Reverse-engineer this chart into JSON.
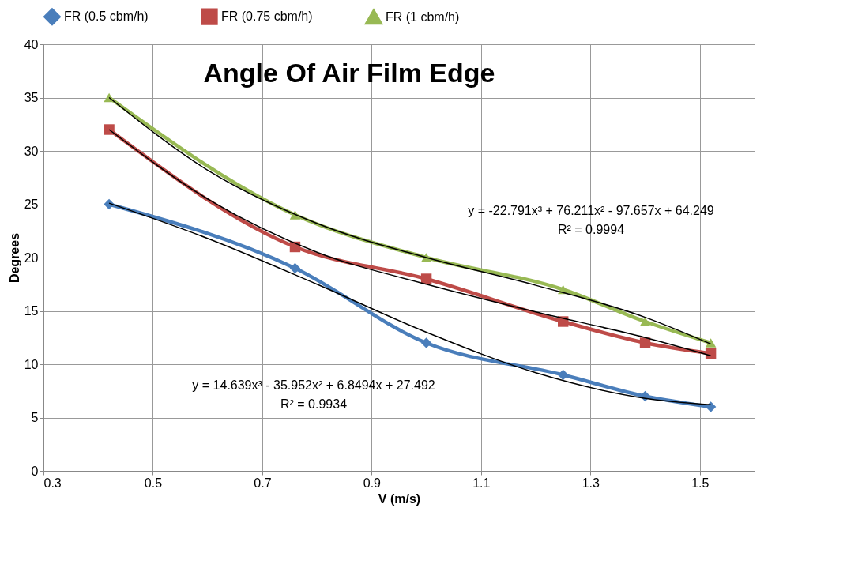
{
  "chart_data": {
    "type": "line",
    "title": "Angle Of Air Film Edge",
    "xlabel": "V (m/s)",
    "ylabel": "Degrees",
    "x": [
      0.42,
      0.76,
      1.0,
      1.25,
      1.4,
      1.52
    ],
    "series": [
      {
        "name": "FR (0.5 cbm/h)",
        "color": "#4a7ebb",
        "marker": "diamond",
        "values": [
          25,
          19,
          12,
          9,
          7,
          6
        ]
      },
      {
        "name": "FR (0.75 cbm/h)",
        "color": "#be4b48",
        "marker": "square",
        "values": [
          32,
          21,
          18,
          14,
          12,
          11
        ]
      },
      {
        "name": "FR (1 cbm/h)",
        "color": "#98b954",
        "marker": "triangle",
        "values": [
          35,
          24,
          20,
          17,
          14,
          12
        ]
      },
      {
        "type": "line",
        "color": "#000000",
        "marker": "none",
        "x": [
          0.42,
          0.6,
          0.8,
          1.0,
          1.2,
          1.4,
          1.52
        ],
        "values": [
          25.1,
          21.8,
          17.5,
          13.0,
          9.2,
          6.8,
          6.2
        ]
      },
      {
        "type": "line",
        "color": "#000000",
        "marker": "none",
        "x": [
          0.42,
          0.6,
          0.8,
          1.0,
          1.2,
          1.4,
          1.52
        ],
        "values": [
          32.0,
          25.5,
          20.5,
          17.5,
          14.9,
          12.5,
          10.8
        ]
      },
      {
        "type": "line",
        "color": "#000000",
        "marker": "none",
        "x": [
          0.42,
          0.6,
          0.8,
          1.0,
          1.2,
          1.4,
          1.52
        ],
        "values": [
          35.0,
          28.2,
          23.2,
          20.0,
          17.4,
          14.4,
          11.9
        ]
      }
    ],
    "annotations": [
      "y = 14.639x³ - 35.952x² + 6.8494x + 27.492\nR² = 0.9934",
      "y = -22.791x³ + 76.211x² - 97.657x + 64.249\nR² = 0.9994"
    ],
    "xlim": [
      0.3,
      1.6
    ],
    "xticks": [
      0.3,
      0.5,
      0.7,
      0.9,
      1.1,
      1.3,
      1.5
    ],
    "ylim": [
      0,
      40
    ],
    "yticks": [
      0,
      5,
      10,
      15,
      20,
      25,
      30,
      35,
      40
    ],
    "grid": true,
    "legend": "top",
    "line_style": "solid"
  }
}
